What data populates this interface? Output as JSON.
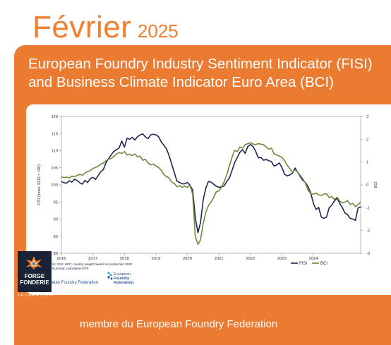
{
  "header": {
    "month": "Février",
    "year": "2025"
  },
  "panel": {
    "title_line1": "European Foundry Industry Sentiment Indicator (FISI)",
    "title_line2": "and Business Climate Indicator Euro Area (BCI)"
  },
  "chart_data": {
    "type": "line",
    "x_start": "2016-01",
    "x_end": "2025-01",
    "x_ticks": [
      "2016",
      "2017",
      "2018",
      "2019",
      "2020",
      "2021",
      "2022",
      "2023",
      "2024"
    ],
    "ylabel": "FISI (Index 2015 = 100)",
    "ylabel_right": "BCI",
    "ylim": [
      80,
      120
    ],
    "ylim_right": [
      -3,
      3
    ],
    "y_ticks": [
      "80",
      "85",
      "90",
      "95",
      "100",
      "105",
      "110",
      "115",
      "120"
    ],
    "y_ticks_right": [
      "-3",
      "-2",
      "-1",
      "0",
      "1",
      "2",
      "3"
    ],
    "grid": false,
    "legend_position": "bottom-right",
    "series": [
      {
        "name": "FISI",
        "axis": "left",
        "color": "#1f2452",
        "values": [
          101,
          100.6,
          100.5,
          101.2,
          100.8,
          101.6,
          101.3,
          100.6,
          100.2,
          101.3,
          100.7,
          101.8,
          102.2,
          101.6,
          102.7,
          103.8,
          104.5,
          106.5,
          107.7,
          108.8,
          109.8,
          110.3,
          110.8,
          112.8,
          111.0,
          113.6,
          113.3,
          113.9,
          113.1,
          114.1,
          114.6,
          114.9,
          114.0,
          113.5,
          114.6,
          114.8,
          114.6,
          114.1,
          112.6,
          111.6,
          110.6,
          108.6,
          106.1,
          103.6,
          101.1,
          100.7,
          100.3,
          100.3,
          100.7,
          99.9,
          98.5,
          90.5,
          86.0,
          89.0,
          95.5,
          99.0,
          101.0,
          100.8,
          100.2,
          99.6,
          99.3,
          99.4,
          99.7,
          101.0,
          102.0,
          104.2,
          106.5,
          108.0,
          109.5,
          110.3,
          109.2,
          111.2,
          111.8,
          111.2,
          109.8,
          107.9,
          108.0,
          107.2,
          107.4,
          107.1,
          106.8,
          105.5,
          105.8,
          106.4,
          105.1,
          103.1,
          102.6,
          102.9,
          103.4,
          104.9,
          103.7,
          102.4,
          101.3,
          100.6,
          99.4,
          97.6,
          94.6,
          92.8,
          93.4,
          90.6,
          90.2,
          90.6,
          93.3,
          94.1,
          95.3,
          96.1,
          94.6,
          93.4,
          91.8,
          91.3,
          90.2,
          90.0,
          89.6,
          93.2,
          93.6
        ]
      },
      {
        "name": "BCI",
        "axis": "right",
        "color": "#6b8a3a",
        "values": [
          0.35,
          0.32,
          0.34,
          0.3,
          0.38,
          0.36,
          0.41,
          0.46,
          0.42,
          0.52,
          0.58,
          0.62,
          0.72,
          0.76,
          0.82,
          0.91,
          0.96,
          1.06,
          1.12,
          1.16,
          1.24,
          1.36,
          1.41,
          1.38,
          1.46,
          1.31,
          1.34,
          1.28,
          1.36,
          1.22,
          1.26,
          1.08,
          1.12,
          0.96,
          0.88,
          0.91,
          0.84,
          0.76,
          0.64,
          0.46,
          0.36,
          0.31,
          0.12,
          0.06,
          -0.08,
          -0.04,
          -0.11,
          -0.06,
          -0.11,
          -0.02,
          -0.41,
          -2.26,
          -2.61,
          -2.41,
          -1.71,
          -1.21,
          -0.91,
          -0.76,
          -0.56,
          -0.31,
          -0.26,
          -0.11,
          0.14,
          0.44,
          0.84,
          1.21,
          1.51,
          1.46,
          1.66,
          1.61,
          1.76,
          1.81,
          1.84,
          1.79,
          1.76,
          1.81,
          1.78,
          1.76,
          1.66,
          1.56,
          1.61,
          1.36,
          1.31,
          1.26,
          1.21,
          1.06,
          0.86,
          0.71,
          0.56,
          0.66,
          0.56,
          0.41,
          0.26,
          0.06,
          -0.24,
          -0.39,
          -0.41,
          -0.36,
          -0.44,
          -0.46,
          -0.41,
          -0.39,
          -0.56,
          -0.51,
          -0.64,
          -0.54,
          -0.71,
          -0.79,
          -0.76,
          -0.69,
          -0.86,
          -0.81,
          -0.96,
          -0.86,
          -0.76
        ]
      }
    ],
    "source_line1": "Source: FISI: EFF; country weight based on production 2020",
    "source_line2": "BCI: Eurostat; calculation EFF"
  },
  "logos": {
    "eff_left_text": "European Foundry Federation",
    "eff_logo_line1": "European",
    "eff_logo_line2": "Foundry",
    "eff_logo_line3": "Federation",
    "ff_line1": "FORGE",
    "ff_line2": "FONDERIE",
    "ff_line3": "FÉDÉRATION"
  },
  "footer": {
    "text": "membre du European Foundry Federation"
  },
  "colors": {
    "accent": "#ec7b32",
    "fisi": "#1f2452",
    "bci": "#6b8a3a"
  }
}
